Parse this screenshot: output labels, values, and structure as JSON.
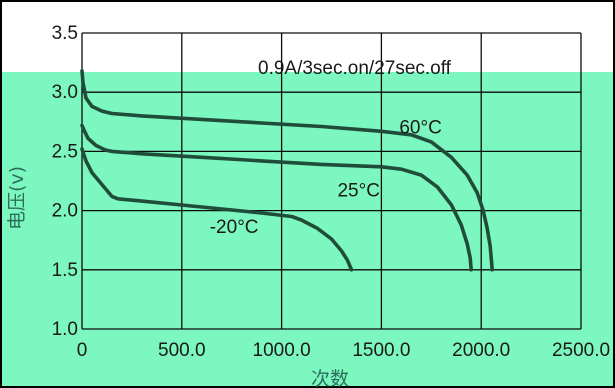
{
  "chart_data": {
    "type": "line",
    "title": "",
    "xlabel": "次数",
    "ylabel": "电压(v)",
    "xlim": [
      0,
      2500
    ],
    "ylim": [
      1.0,
      3.5
    ],
    "x_ticks": [
      "0",
      "500.0",
      "1000.0",
      "1500.0",
      "2000.0",
      "2500.0"
    ],
    "x_tick_values": [
      0,
      500,
      1000,
      1500,
      2000,
      2500
    ],
    "y_ticks": [
      "1.0",
      "1.5",
      "2.0",
      "2.5",
      "3.0",
      "3.5"
    ],
    "y_tick_values": [
      1.0,
      1.5,
      2.0,
      2.5,
      3.0,
      3.5
    ],
    "grid": true,
    "annotation": "0.9A/3sec.on/27sec.off",
    "colors": {
      "background": "#7df7c0",
      "header": "#ffffff",
      "line": "#1f4d3a",
      "grid": "#0d0d0d"
    },
    "series": [
      {
        "name": "60°C",
        "label_at": [
          1590,
          2.65
        ],
        "points": [
          [
            0,
            3.18
          ],
          [
            5,
            3.08
          ],
          [
            20,
            2.95
          ],
          [
            50,
            2.88
          ],
          [
            100,
            2.84
          ],
          [
            150,
            2.82
          ],
          [
            300,
            2.8
          ],
          [
            600,
            2.77
          ],
          [
            900,
            2.74
          ],
          [
            1200,
            2.71
          ],
          [
            1500,
            2.67
          ],
          [
            1650,
            2.64
          ],
          [
            1750,
            2.58
          ],
          [
            1850,
            2.45
          ],
          [
            1930,
            2.3
          ],
          [
            1980,
            2.15
          ],
          [
            2010,
            2.0
          ],
          [
            2030,
            1.85
          ],
          [
            2045,
            1.7
          ],
          [
            2055,
            1.5
          ]
        ]
      },
      {
        "name": "25°C",
        "label_at": [
          1280,
          2.12
        ],
        "points": [
          [
            0,
            2.72
          ],
          [
            10,
            2.68
          ],
          [
            30,
            2.61
          ],
          [
            70,
            2.55
          ],
          [
            120,
            2.51
          ],
          [
            150,
            2.5
          ],
          [
            300,
            2.48
          ],
          [
            600,
            2.45
          ],
          [
            900,
            2.42
          ],
          [
            1200,
            2.39
          ],
          [
            1500,
            2.37
          ],
          [
            1600,
            2.35
          ],
          [
            1700,
            2.3
          ],
          [
            1780,
            2.2
          ],
          [
            1850,
            2.05
          ],
          [
            1900,
            1.88
          ],
          [
            1930,
            1.72
          ],
          [
            1945,
            1.6
          ],
          [
            1950,
            1.5
          ]
        ]
      },
      {
        "name": "-20°C",
        "label_at": [
          640,
          1.81
        ],
        "points": [
          [
            0,
            2.52
          ],
          [
            20,
            2.42
          ],
          [
            50,
            2.32
          ],
          [
            100,
            2.22
          ],
          [
            150,
            2.12
          ],
          [
            180,
            2.1
          ],
          [
            300,
            2.08
          ],
          [
            600,
            2.03
          ],
          [
            900,
            1.98
          ],
          [
            1050,
            1.95
          ],
          [
            1100,
            1.92
          ],
          [
            1180,
            1.85
          ],
          [
            1250,
            1.76
          ],
          [
            1300,
            1.66
          ],
          [
            1330,
            1.58
          ],
          [
            1350,
            1.5
          ]
        ]
      }
    ]
  }
}
